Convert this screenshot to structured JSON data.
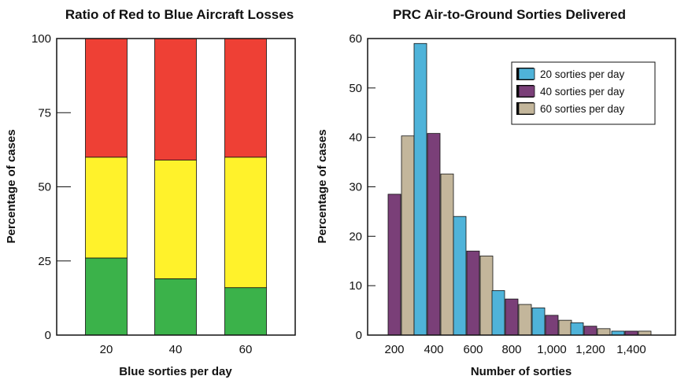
{
  "chart_data": [
    {
      "type": "bar",
      "stacked": true,
      "title": "Ratio of Red to Blue Aircraft Losses",
      "xlabel": "Blue sorties per day",
      "ylabel": "Percentage of cases",
      "categories": [
        "20",
        "40",
        "60"
      ],
      "ylim": [
        0,
        100
      ],
      "yticks": [
        "0",
        "25",
        "50",
        "75",
        "100"
      ],
      "grid": false,
      "series": [
        {
          "values": [
            26,
            19,
            16
          ],
          "color": "#3bb24a"
        },
        {
          "values": [
            34,
            40,
            44
          ],
          "color": "#fff22b"
        },
        {
          "values": [
            40,
            41,
            40
          ],
          "color": "#ee4035"
        }
      ]
    },
    {
      "type": "bar",
      "title": "PRC Air-to-Ground Sorties Delivered",
      "xlabel": "Number of sorties",
      "ylabel": "Percentage of cases",
      "categories": [
        "200",
        "400",
        "600",
        "800",
        "1,000",
        "1,200",
        "1,400"
      ],
      "ylim": [
        0,
        60
      ],
      "yticks": [
        "0",
        "10",
        "20",
        "30",
        "40",
        "50",
        "60"
      ],
      "grid": false,
      "legend": "top-right",
      "series": [
        {
          "name": "20 sorties per day",
          "color": "#4fb3d9",
          "values": [
            0,
            59,
            24,
            9,
            5.5,
            2.5,
            0.8
          ]
        },
        {
          "name": "40 sorties per day",
          "color": "#7a3f78",
          "values": [
            28.5,
            40.8,
            17,
            7.3,
            4,
            1.8,
            0.8
          ]
        },
        {
          "name": "60 sorties per day",
          "color": "#c3b69b",
          "values": [
            40.3,
            32.6,
            16,
            6.2,
            3,
            1.3,
            0.8
          ]
        }
      ]
    }
  ]
}
